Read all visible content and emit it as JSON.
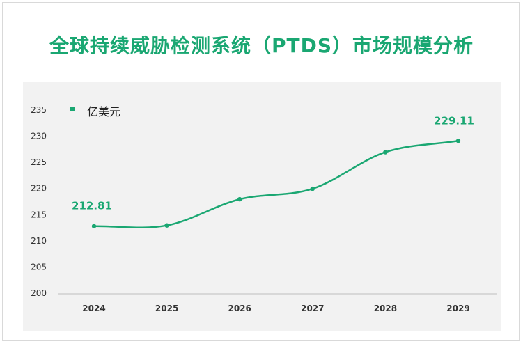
{
  "chart_data": {
    "type": "line",
    "title": "全球持续威胁检测系统（PTDS）市场规模分析",
    "xlabel": "",
    "ylabel": "",
    "categories": [
      "2024",
      "2025",
      "2026",
      "2027",
      "2028",
      "2029"
    ],
    "series": [
      {
        "name": "亿美元",
        "values": [
          212.81,
          212.95,
          217.95,
          219.95,
          226.95,
          229.11
        ],
        "data_labels": [
          "212.81",
          "",
          "",
          "",
          "",
          "229.11"
        ]
      }
    ],
    "y_ticks": [
      "200",
      "205",
      "210",
      "215",
      "220",
      "225",
      "230",
      "235"
    ],
    "ylim": [
      200,
      235
    ],
    "grid": false,
    "legend": "top-left",
    "colors": {
      "line": "#1aa772",
      "title": "#1aa772",
      "plot_bg": "#f2f2f2",
      "axis": "#bfbfbf"
    }
  }
}
